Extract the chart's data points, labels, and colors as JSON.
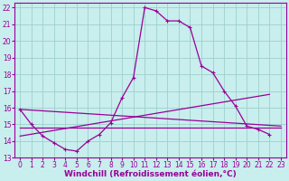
{
  "background_color": "#c8eeed",
  "grid_color": "#9dcfcc",
  "line_color": "#990099",
  "xlim": [
    -0.5,
    23.5
  ],
  "ylim": [
    13,
    22.3
  ],
  "xlabel": "Windchill (Refroidissement éolien,°C)",
  "xlabel_fontsize": 6.5,
  "xticks": [
    0,
    1,
    2,
    3,
    4,
    5,
    6,
    7,
    8,
    9,
    10,
    11,
    12,
    13,
    14,
    15,
    16,
    17,
    18,
    19,
    20,
    21,
    22,
    23
  ],
  "yticks": [
    13,
    14,
    15,
    16,
    17,
    18,
    19,
    20,
    21,
    22
  ],
  "tick_fontsize": 5.5,
  "main_x": [
    0,
    1,
    2,
    3,
    4,
    5,
    6,
    7,
    8,
    9,
    10,
    11,
    12,
    13,
    14,
    15,
    16,
    17,
    18,
    19,
    20,
    21,
    22
  ],
  "main_y": [
    15.9,
    15.0,
    14.3,
    13.9,
    13.5,
    13.4,
    14.0,
    14.4,
    15.1,
    16.6,
    17.8,
    22.0,
    21.8,
    21.2,
    21.2,
    20.8,
    18.5,
    18.1,
    17.0,
    16.1,
    14.9,
    14.7,
    14.4
  ],
  "line2_x": [
    0,
    23
  ],
  "line2_y": [
    15.9,
    14.9
  ],
  "line3_x": [
    0,
    22
  ],
  "line3_y": [
    14.3,
    16.8
  ],
  "line4_x": [
    0,
    23
  ],
  "line4_y": [
    14.8,
    14.8
  ],
  "figsize": [
    3.2,
    2.0
  ],
  "dpi": 100
}
